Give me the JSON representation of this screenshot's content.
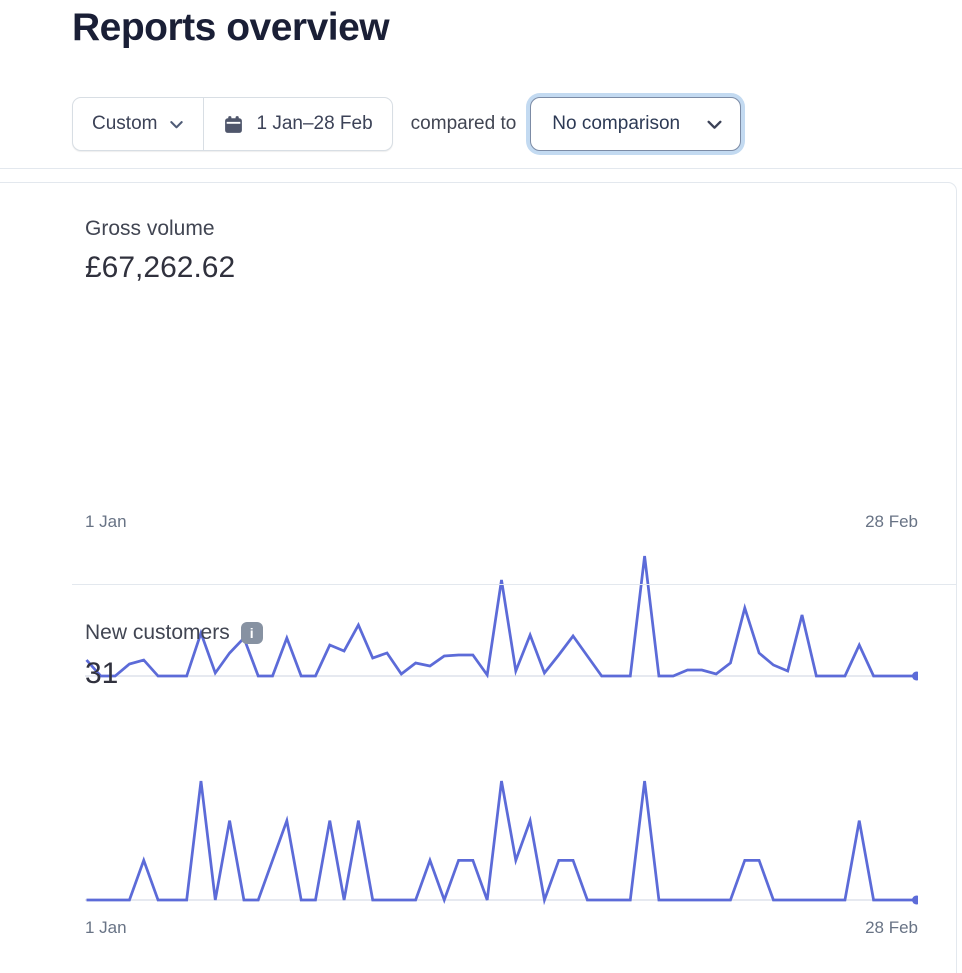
{
  "page": {
    "title": "Reports overview"
  },
  "toolbar": {
    "range_type_label": "Custom",
    "date_range_label": "1 Jan–28 Feb",
    "compared_to_label": "compared to",
    "comparison_value": "No comparison"
  },
  "icons": {
    "info_glyph": "i"
  },
  "cards": [
    {
      "title": "Gross volume",
      "value": "£67,262.62",
      "x_start_label": "1 Jan",
      "x_end_label": "28 Feb"
    },
    {
      "title": "New customers",
      "value": "31",
      "x_start_label": "1 Jan",
      "x_end_label": "28 Feb"
    }
  ],
  "colors": {
    "accent_line": "#5c6bd8",
    "baseline": "#e6e9f0",
    "heading": "#1a1f36",
    "muted_text": "#687385",
    "border": "#e3e8ee",
    "focus_ring": "#c3daf1",
    "info_icon_bg": "#8792a2"
  },
  "chart_data": [
    {
      "type": "line",
      "title": "Gross volume",
      "total_label": "£67,262.62",
      "x_range": [
        "1 Jan",
        "28 Feb"
      ],
      "x_unit": "day",
      "y_axis": "unlabeled (relative height units, 0 = baseline)",
      "legend": "none",
      "grid": "baseline only",
      "end_point_dot": true,
      "values": [
        16,
        0,
        0,
        12,
        16,
        0,
        0,
        0,
        43,
        3,
        23,
        38,
        0,
        0,
        38,
        0,
        0,
        31,
        25,
        51,
        18,
        23,
        2,
        13,
        10,
        20,
        21,
        21,
        1,
        96,
        5,
        41,
        3,
        21,
        40,
        20,
        0,
        0,
        0,
        120,
        0,
        0,
        6,
        6,
        2,
        13,
        68,
        23,
        11,
        5,
        61,
        0,
        0,
        0,
        31,
        0,
        0,
        0,
        0
      ]
    },
    {
      "type": "line",
      "title": "New customers",
      "total_label": "31",
      "x_range": [
        "1 Jan",
        "28 Feb"
      ],
      "x_unit": "day",
      "y_axis": "unlabeled (customers per day, values sum to 31)",
      "legend": "none",
      "grid": "baseline only",
      "end_point_dot": true,
      "values": [
        0,
        0,
        0,
        0,
        1,
        0,
        0,
        0,
        3,
        0,
        2,
        0,
        0,
        1,
        2,
        0,
        0,
        2,
        0,
        2,
        0,
        0,
        0,
        0,
        1,
        0,
        1,
        1,
        0,
        3,
        1,
        2,
        0,
        1,
        1,
        0,
        0,
        0,
        0,
        3,
        0,
        0,
        0,
        0,
        0,
        0,
        1,
        1,
        0,
        0,
        0,
        0,
        0,
        0,
        2,
        0,
        0,
        0,
        0
      ]
    }
  ]
}
